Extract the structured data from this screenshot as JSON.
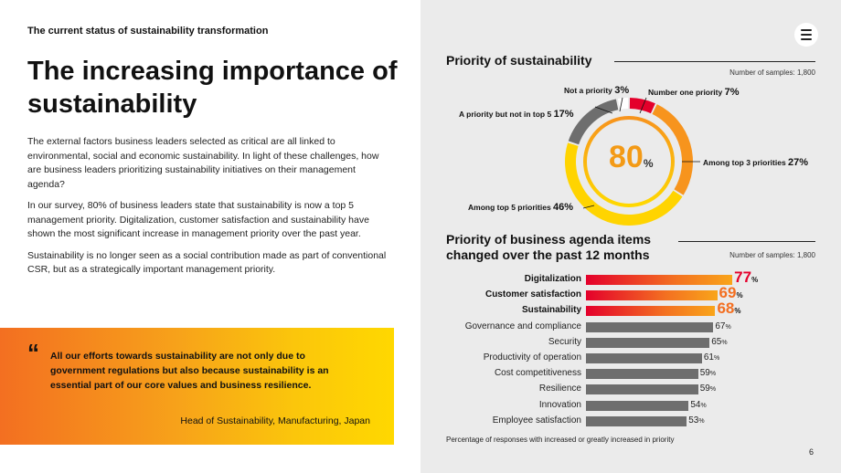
{
  "left": {
    "kicker": "The current status of sustainability transformation",
    "title": "The increasing importance of sustainability",
    "paragraphs": [
      "The external factors business leaders selected as critical are all linked to environmental, social and economic sustainability. In light of these challenges, how are business leaders prioritizing sustainability initiatives on their management agenda?",
      "In our survey, 80% of business leaders state that sustainability is now a top 5 management priority. Digitalization, customer satisfaction and sustainability have shown the most significant increase in management priority over the past year.",
      "Sustainability is no longer seen as a social contribution made as part of conventional CSR, but as a strategically important management priority."
    ],
    "quote": {
      "mark": "“",
      "text": "All our efforts towards sustainability are not only due to government regulations but also because sustainability is an essential part of our core values and business resilience.",
      "attribution": "Head of Sustainability, Manufacturing, Japan"
    }
  },
  "menu": {
    "icon": "hamburger-menu-icon"
  },
  "donut": {
    "title": "Priority of sustainability",
    "samples": "Number of samples: 1,800",
    "center_value": "80",
    "center_unit": "%",
    "labels": [
      {
        "text": "Not a priority ",
        "value": "3%"
      },
      {
        "text": "Number one priority ",
        "value": "7%"
      },
      {
        "text": "A priority but not in top 5 ",
        "value": "17%"
      },
      {
        "text": "Among top 3 priorities ",
        "value": "27%"
      },
      {
        "text": "Among top 5 priorities ",
        "value": "46%"
      }
    ]
  },
  "bars_section": {
    "title_line1": "Priority of business agenda items",
    "title_line2": "changed over the past 12 months",
    "samples": "Number of samples: 1,800",
    "unit": "%",
    "footnote": "Percentage of responses with increased or greatly increased in priority"
  },
  "page_number": "6",
  "colors": {
    "accent_red": "#e4002b",
    "accent_orange": "#f39a16",
    "accent_yellow": "#ffd800",
    "bar_grey": "#6e6e6e"
  },
  "chart_data": [
    {
      "type": "pie",
      "title": "Priority of sustainability",
      "categories": [
        "Number one priority",
        "Among top 3 priorities",
        "Among top 5 priorities",
        "A priority but not in top 5",
        "Not a priority"
      ],
      "values": [
        7,
        27,
        46,
        17,
        3
      ],
      "unit": "%",
      "center_label": "80%"
    },
    {
      "type": "bar",
      "orientation": "horizontal",
      "title": "Priority of business agenda items changed over the past 12 months",
      "categories": [
        "Digitalization",
        "Customer satisfaction",
        "Sustainability",
        "Governance and compliance",
        "Security",
        "Productivity of operation",
        "Cost competitiveness",
        "Resilience",
        "Innovation",
        "Employee satisfaction"
      ],
      "values": [
        77,
        69,
        68,
        67,
        65,
        61,
        59,
        59,
        54,
        53
      ],
      "highlighted": [
        true,
        true,
        true,
        false,
        false,
        false,
        false,
        false,
        false,
        false
      ],
      "unit": "%"
    }
  ]
}
